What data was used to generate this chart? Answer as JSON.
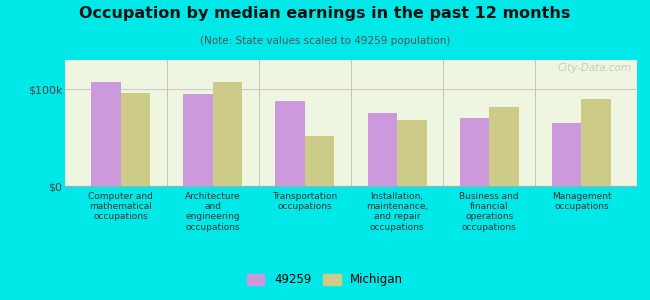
{
  "title": "Occupation by median earnings in the past 12 months",
  "subtitle": "(Note: State values scaled to 49259 population)",
  "background_color": "#00e8e8",
  "bar_color_local": "#cc99dd",
  "bar_color_state": "#cccc88",
  "categories": [
    "Computer and\nmathematical\noccupations",
    "Architecture\nand\nengineering\noccupations",
    "Transportation\noccupations",
    "Installation,\nmaintenance,\nand repair\noccupations",
    "Business and\nfinancial\noperations\noccupations",
    "Management\noccupations"
  ],
  "values_local": [
    107000,
    95000,
    88000,
    75000,
    70000,
    65000
  ],
  "values_state": [
    96000,
    107000,
    52000,
    68000,
    82000,
    90000
  ],
  "ylim": [
    0,
    130000
  ],
  "yticks": [
    0,
    100000
  ],
  "ytick_labels": [
    "$0",
    "$100k"
  ],
  "legend_labels": [
    "49259",
    "Michigan"
  ],
  "watermark": "City-Data.com"
}
